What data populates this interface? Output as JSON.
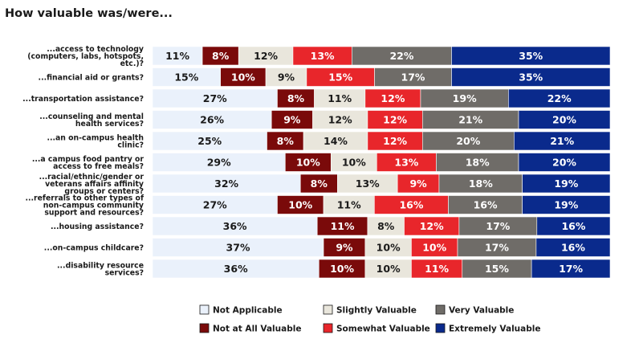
{
  "chart_data": {
    "type": "stacked-bar-horizontal",
    "title": "How valuable was/were...",
    "categories": [
      "...access to technology (computers, labs, hotspots, etc.)?",
      "...financial aid or grants?",
      "...transportation assistance?",
      "...counseling and mental health services?",
      "...an on-campus health clinic?",
      "...a campus food pantry or access to free meals?",
      "...racial/ethnic/gender or veterans affairs affinity groups or centers?",
      "...referrals to other types of non-campus community support and resources?",
      "...housing assistance?",
      "...on-campus childcare?",
      "...disability resource services?"
    ],
    "category_lines": [
      [
        "...access to technology",
        "(computers, labs, hotspots,",
        "etc.)?"
      ],
      [
        "...financial aid or grants?"
      ],
      [
        "...transportation assistance?"
      ],
      [
        "...counseling and mental",
        "health services?"
      ],
      [
        "...an on-campus health",
        "clinic?"
      ],
      [
        "...a campus food pantry or",
        "access to free meals?"
      ],
      [
        "...racial/ethnic/gender or",
        "veterans affairs affinity",
        "groups or centers?"
      ],
      [
        "...referrals to other types of",
        "non-campus community",
        "support and resources?"
      ],
      [
        "...housing assistance?"
      ],
      [
        "...on-campus childcare?"
      ],
      [
        "...disability resource",
        "services?"
      ]
    ],
    "series": [
      {
        "name": "Not Applicable",
        "color": "#eaf1fb",
        "text_color": "#1a1a1a",
        "values": [
          11,
          15,
          27,
          26,
          25,
          29,
          32,
          27,
          36,
          37,
          36
        ]
      },
      {
        "name": "Not at All Valuable",
        "color": "#7a0a0a",
        "text_color": "#ffffff",
        "values": [
          8,
          10,
          8,
          9,
          8,
          10,
          8,
          10,
          11,
          9,
          10
        ]
      },
      {
        "name": "Slightly Valuable",
        "color": "#e9e6dc",
        "text_color": "#1a1a1a",
        "values": [
          12,
          9,
          11,
          12,
          14,
          10,
          13,
          11,
          8,
          10,
          10
        ]
      },
      {
        "name": "Somewhat Valuable",
        "color": "#e8262b",
        "text_color": "#ffffff",
        "values": [
          13,
          15,
          12,
          12,
          12,
          13,
          9,
          16,
          12,
          10,
          11
        ]
      },
      {
        "name": "Very Valuable",
        "color": "#6f6c68",
        "text_color": "#ffffff",
        "values": [
          22,
          17,
          19,
          21,
          20,
          18,
          18,
          16,
          17,
          17,
          15
        ]
      },
      {
        "name": "Extremely Valuable",
        "color": "#0a2a8c",
        "text_color": "#ffffff",
        "values": [
          35,
          35,
          22,
          20,
          21,
          20,
          19,
          19,
          16,
          16,
          17
        ]
      }
    ],
    "value_suffix": "%",
    "legend": {
      "position": "bottom-center",
      "columns": 3
    }
  }
}
